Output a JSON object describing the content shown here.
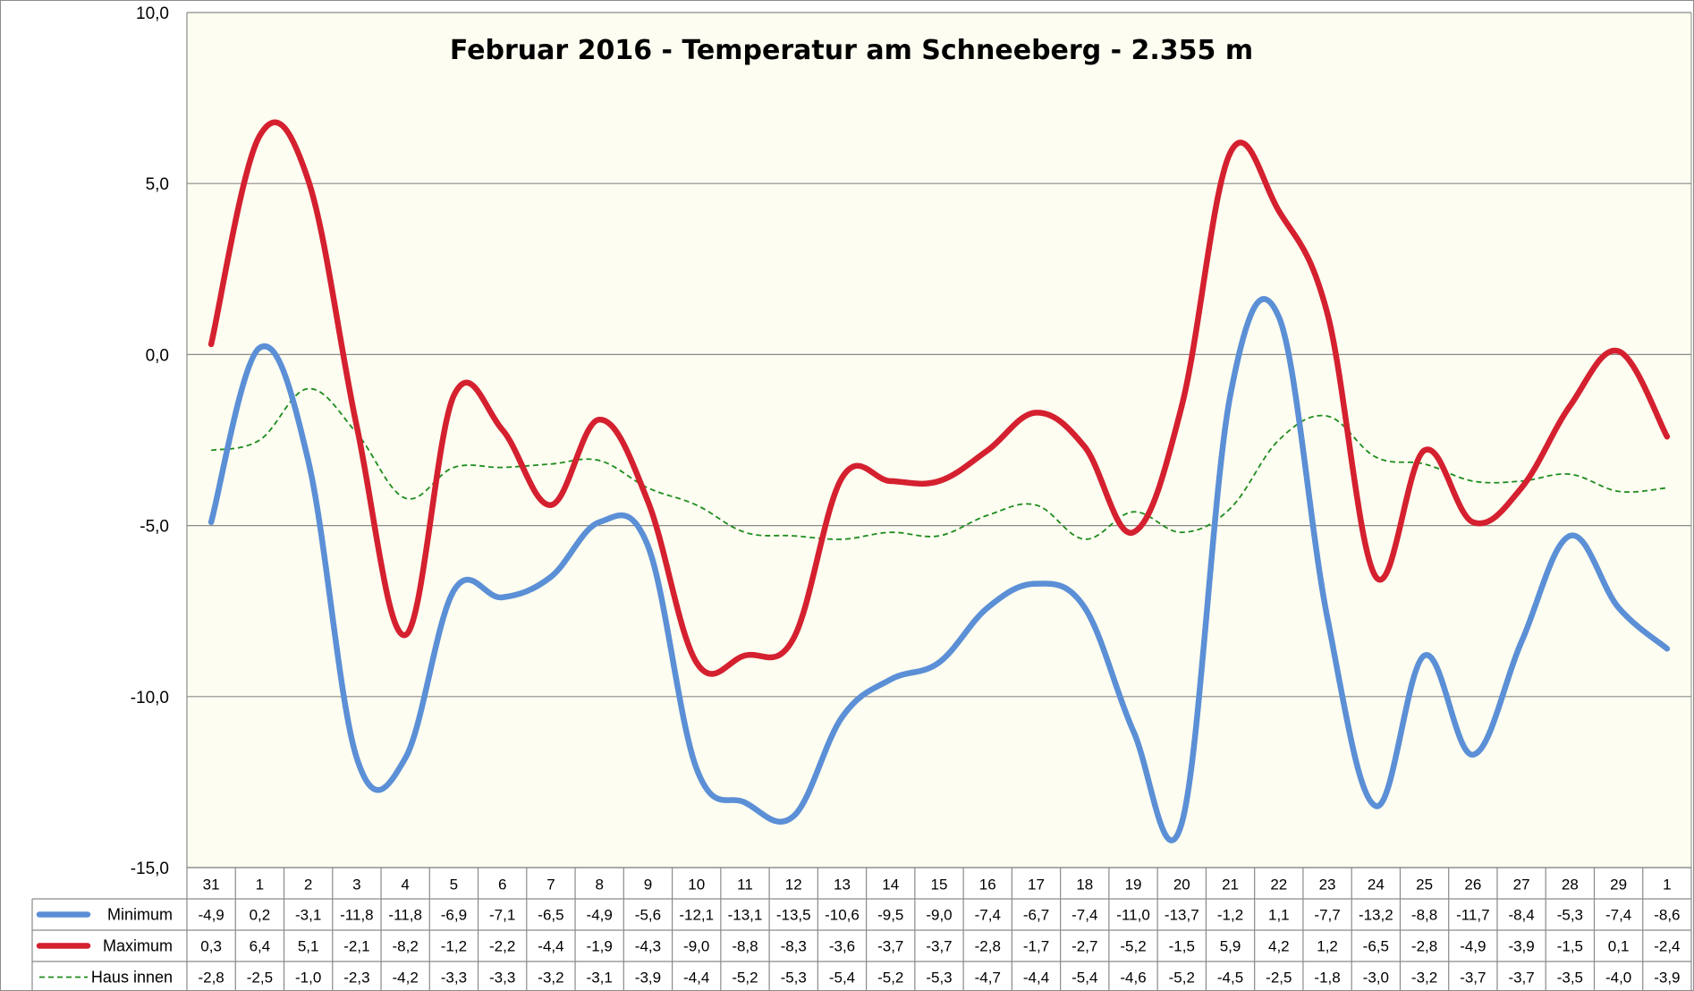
{
  "chart_data": {
    "type": "line",
    "title": "Februar 2016 - Temperatur am Schneeberg - 2.355 m",
    "xlabel": "",
    "ylabel": "",
    "ylim": [
      -15,
      10
    ],
    "y_tick_values": [
      10,
      5,
      0,
      -5,
      -10,
      -15
    ],
    "y_tick_labels": [
      "10,0",
      "5,0",
      "0,0",
      "-5,0",
      "-10,0",
      "-15,0"
    ],
    "grid": true,
    "legend": "data-table-left",
    "categories": [
      "31",
      "1",
      "2",
      "3",
      "4",
      "5",
      "6",
      "7",
      "8",
      "9",
      "10",
      "11",
      "12",
      "13",
      "14",
      "15",
      "16",
      "17",
      "18",
      "19",
      "20",
      "21",
      "22",
      "23",
      "24",
      "25",
      "26",
      "27",
      "28",
      "29",
      "1"
    ],
    "series": [
      {
        "name": "Minimum",
        "color": "#5b8fd6",
        "style": "solid",
        "values": [
          -4.9,
          0.2,
          -3.1,
          -11.8,
          -11.8,
          -6.9,
          -7.1,
          -6.5,
          -4.9,
          -5.6,
          -12.1,
          -13.1,
          -13.5,
          -10.6,
          -9.5,
          -9.0,
          -7.4,
          -6.7,
          -7.4,
          -11.0,
          -13.7,
          -1.2,
          1.1,
          -7.7,
          -13.2,
          -8.8,
          -11.7,
          -8.4,
          -5.3,
          -7.4,
          -8.6
        ],
        "labels": [
          "-4,9",
          "0,2",
          "-3,1",
          "-11,8",
          "-11,8",
          "-6,9",
          "-7,1",
          "-6,5",
          "-4,9",
          "-5,6",
          "-12,1",
          "-13,1",
          "-13,5",
          "-10,6",
          "-9,5",
          "-9,0",
          "-7,4",
          "-6,7",
          "-7,4",
          "-11,0",
          "-13,7",
          "-1,2",
          "1,1",
          "-7,7",
          "-13,2",
          "-8,8",
          "-11,7",
          "-8,4",
          "-5,3",
          "-7,4",
          "-8,6"
        ]
      },
      {
        "name": "Maximum",
        "color": "#d4202f",
        "style": "solid",
        "values": [
          0.3,
          6.4,
          5.1,
          -2.1,
          -8.2,
          -1.2,
          -2.2,
          -4.4,
          -1.9,
          -4.3,
          -9.0,
          -8.8,
          -8.3,
          -3.6,
          -3.7,
          -3.7,
          -2.8,
          -1.7,
          -2.7,
          -5.2,
          -1.5,
          5.9,
          4.2,
          1.2,
          -6.5,
          -2.8,
          -4.9,
          -3.9,
          -1.5,
          0.1,
          -2.4
        ],
        "labels": [
          "0,3",
          "6,4",
          "5,1",
          "-2,1",
          "-8,2",
          "-1,2",
          "-2,2",
          "-4,4",
          "-1,9",
          "-4,3",
          "-9,0",
          "-8,8",
          "-8,3",
          "-3,6",
          "-3,7",
          "-3,7",
          "-2,8",
          "-1,7",
          "-2,7",
          "-5,2",
          "-1,5",
          "5,9",
          "4,2",
          "1,2",
          "-6,5",
          "-2,8",
          "-4,9",
          "-3,9",
          "-1,5",
          "0,1",
          "-2,4"
        ]
      },
      {
        "name": "Haus innen",
        "color": "#1e8c1e",
        "style": "dashed",
        "values": [
          -2.8,
          -2.5,
          -1.0,
          -2.3,
          -4.2,
          -3.3,
          -3.3,
          -3.2,
          -3.1,
          -3.9,
          -4.4,
          -5.2,
          -5.3,
          -5.4,
          -5.2,
          -5.3,
          -4.7,
          -4.4,
          -5.4,
          -4.6,
          -5.2,
          -4.5,
          -2.5,
          -1.8,
          -3.0,
          -3.2,
          -3.7,
          -3.7,
          -3.5,
          -4.0,
          -3.9
        ],
        "labels": [
          "-2,8",
          "-2,5",
          "-1,0",
          "-2,3",
          "-4,2",
          "-3,3",
          "-3,3",
          "-3,2",
          "-3,1",
          "-3,9",
          "-4,4",
          "-5,2",
          "-5,3",
          "-5,4",
          "-5,2",
          "-5,3",
          "-4,7",
          "-4,4",
          "-5,4",
          "-4,6",
          "-5,2",
          "-4,5",
          "-2,5",
          "-1,8",
          "-3,0",
          "-3,2",
          "-3,7",
          "-3,7",
          "-3,5",
          "-4,0",
          "-3,9"
        ]
      }
    ]
  }
}
